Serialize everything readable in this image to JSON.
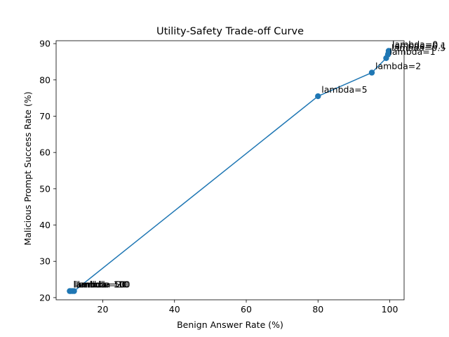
{
  "chart_data": {
    "type": "line",
    "title": "Utility-Safety Trade-off Curve",
    "xlabel": "Benign Answer Rate (%)",
    "ylabel": "Malicious Prompt Success Rate (%)",
    "xlim": [
      7,
      104
    ],
    "ylim": [
      19.4,
      90.8
    ],
    "xticks": [
      20,
      40,
      60,
      80,
      100
    ],
    "yticks": [
      20,
      30,
      40,
      50,
      60,
      70,
      80,
      90
    ],
    "grid": false,
    "marker": "circle",
    "color": "#1f77b4",
    "points": [
      {
        "x": 99.7,
        "y": 88.0,
        "label": "lambda=0"
      },
      {
        "x": 99.7,
        "y": 87.6,
        "label": "lambda=0.1"
      },
      {
        "x": 99.5,
        "y": 87.0,
        "label": "lambda=0.5"
      },
      {
        "x": 99.0,
        "y": 86.0,
        "label": "lambda=1"
      },
      {
        "x": 95.0,
        "y": 82.0,
        "label": "lambda=2"
      },
      {
        "x": 80.0,
        "y": 75.5,
        "label": "lambda=5"
      },
      {
        "x": 12.0,
        "y": 21.8,
        "label": "lambda=10"
      },
      {
        "x": 11.5,
        "y": 21.8,
        "label": "lambda=20"
      },
      {
        "x": 11.0,
        "y": 21.8,
        "label": "lambda=50"
      },
      {
        "x": 10.8,
        "y": 21.8,
        "label": "lambda=100"
      }
    ]
  }
}
